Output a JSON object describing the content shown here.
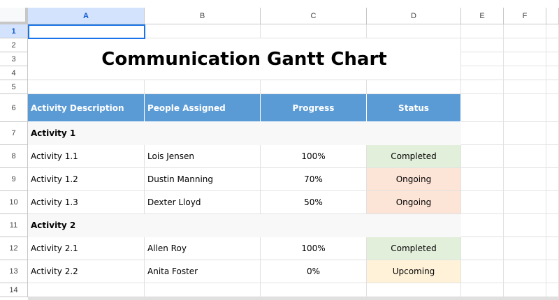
{
  "columns": [
    "A",
    "B",
    "C",
    "D",
    "E",
    "F"
  ],
  "rows": [
    "1",
    "2",
    "3",
    "4",
    "5",
    "6",
    "7",
    "8",
    "9",
    "10",
    "11",
    "12",
    "13",
    "14"
  ],
  "selected_cell": "A1",
  "title": "Communication Gantt Chart",
  "headers": [
    "Activity Description",
    "People Assigned",
    "Progress",
    "Status"
  ],
  "groups": [
    {
      "label": "Activity 1",
      "items": [
        {
          "activity": "Activity 1.1",
          "person": "Lois Jensen",
          "progress": "100%",
          "status": "Completed"
        },
        {
          "activity": "Activity 1.2",
          "person": "Dustin Manning",
          "progress": "70%",
          "status": "Ongoing"
        },
        {
          "activity": "Activity 1.3",
          "person": "Dexter Lloyd",
          "progress": "50%",
          "status": "Ongoing"
        }
      ]
    },
    {
      "label": "Activity 2",
      "items": [
        {
          "activity": "Activity 2.1",
          "person": "Allen Roy",
          "progress": "100%",
          "status": "Completed"
        },
        {
          "activity": "Activity 2.2",
          "person": "Anita Foster",
          "progress": "0%",
          "status": "Upcoming"
        }
      ]
    }
  ],
  "status_colors": {
    "Completed": "#e2efda",
    "Ongoing": "#fce4d6",
    "Upcoming": "#fff2d9"
  },
  "header_color": "#5b9bd5"
}
